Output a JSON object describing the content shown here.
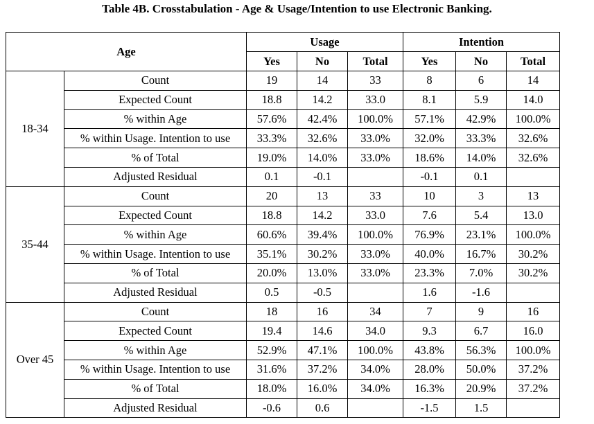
{
  "title": "Table 4B. Crosstabulation - Age & Usage/Intention to use Electronic Banking.",
  "header": {
    "age_label": "Age",
    "usage_label": "Usage",
    "intention_label": "Intention",
    "usage_cols": [
      "Yes",
      "No",
      "Total"
    ],
    "intention_cols": [
      "Yes",
      "No",
      "Total"
    ]
  },
  "groups": [
    {
      "age": "18-34",
      "rows": [
        {
          "stat": "Count",
          "usage": [
            "19",
            "14",
            "33"
          ],
          "intention": [
            "8",
            "6",
            "14"
          ]
        },
        {
          "stat": "Expected Count",
          "usage": [
            "18.8",
            "14.2",
            "33.0"
          ],
          "intention": [
            "8.1",
            "5.9",
            "14.0"
          ]
        },
        {
          "stat": "% within Age",
          "usage": [
            "57.6%",
            "42.4%",
            "100.0%"
          ],
          "intention": [
            "57.1%",
            "42.9%",
            "100.0%"
          ]
        },
        {
          "stat": "% within Usage. Intention to use",
          "usage": [
            "33.3%",
            "32.6%",
            "33.0%"
          ],
          "intention": [
            "32.0%",
            "33.3%",
            "32.6%"
          ]
        },
        {
          "stat": "% of Total",
          "usage": [
            "19.0%",
            "14.0%",
            "33.0%"
          ],
          "intention": [
            "18.6%",
            "14.0%",
            "32.6%"
          ]
        },
        {
          "stat": "Adjusted Residual",
          "usage": [
            "0.1",
            "-0.1",
            ""
          ],
          "intention": [
            "-0.1",
            "0.1",
            ""
          ]
        }
      ]
    },
    {
      "age": "35-44",
      "rows": [
        {
          "stat": "Count",
          "usage": [
            "20",
            "13",
            "33"
          ],
          "intention": [
            "10",
            "3",
            "13"
          ]
        },
        {
          "stat": "Expected Count",
          "usage": [
            "18.8",
            "14.2",
            "33.0"
          ],
          "intention": [
            "7.6",
            "5.4",
            "13.0"
          ]
        },
        {
          "stat": "% within Age",
          "usage": [
            "60.6%",
            "39.4%",
            "100.0%"
          ],
          "intention": [
            "76.9%",
            "23.1%",
            "100.0%"
          ]
        },
        {
          "stat": "% within Usage. Intention to use",
          "usage": [
            "35.1%",
            "30.2%",
            "33.0%"
          ],
          "intention": [
            "40.0%",
            "16.7%",
            "30.2%"
          ]
        },
        {
          "stat": "% of Total",
          "usage": [
            "20.0%",
            "13.0%",
            "33.0%"
          ],
          "intention": [
            "23.3%",
            "7.0%",
            "30.2%"
          ]
        },
        {
          "stat": "Adjusted Residual",
          "usage": [
            "0.5",
            "-0.5",
            ""
          ],
          "intention": [
            "1.6",
            "-1.6",
            ""
          ]
        }
      ]
    },
    {
      "age": "Over 45",
      "rows": [
        {
          "stat": "Count",
          "usage": [
            "18",
            "16",
            "34"
          ],
          "intention": [
            "7",
            "9",
            "16"
          ]
        },
        {
          "stat": "Expected Count",
          "usage": [
            "19.4",
            "14.6",
            "34.0"
          ],
          "intention": [
            "9.3",
            "6.7",
            "16.0"
          ]
        },
        {
          "stat": "% within Age",
          "usage": [
            "52.9%",
            "47.1%",
            "100.0%"
          ],
          "intention": [
            "43.8%",
            "56.3%",
            "100.0%"
          ]
        },
        {
          "stat": "% within Usage. Intention to use",
          "usage": [
            "31.6%",
            "37.2%",
            "34.0%"
          ],
          "intention": [
            "28.0%",
            "50.0%",
            "37.2%"
          ]
        },
        {
          "stat": "% of Total",
          "usage": [
            "18.0%",
            "16.0%",
            "34.0%"
          ],
          "intention": [
            "16.3%",
            "20.9%",
            "37.2%"
          ]
        },
        {
          "stat": "Adjusted Residual",
          "usage": [
            "-0.6",
            "0.6",
            ""
          ],
          "intention": [
            "-1.5",
            "1.5",
            ""
          ]
        }
      ]
    }
  ]
}
